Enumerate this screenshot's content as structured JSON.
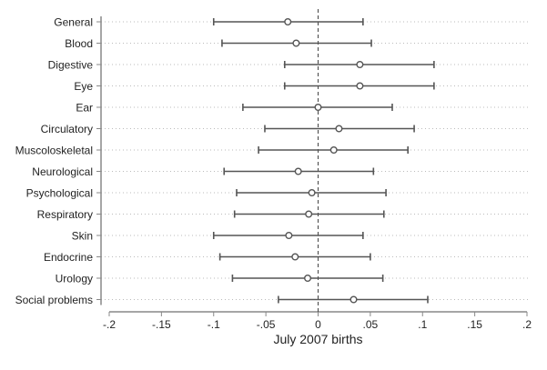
{
  "chart_data": {
    "type": "scatter",
    "subtype": "coefficient-plot-with-confidence-intervals",
    "xlabel": "July 2007 births",
    "ylabel": "",
    "title": "",
    "xlim": [
      -0.2,
      0.2
    ],
    "xticks": [
      {
        "value": -0.2,
        "label": "-.2"
      },
      {
        "value": -0.15,
        "label": "-.15"
      },
      {
        "value": -0.1,
        "label": "-.1"
      },
      {
        "value": -0.05,
        "label": "-.05"
      },
      {
        "value": 0,
        "label": "0"
      },
      {
        "value": 0.05,
        "label": ".05"
      },
      {
        "value": 0.1,
        "label": ".1"
      },
      {
        "value": 0.15,
        "label": ".15"
      },
      {
        "value": 0.2,
        "label": ".2"
      }
    ],
    "reference_line": {
      "x": 0,
      "style": "dashed"
    },
    "grid": "horizontal dotted",
    "categories": [
      "General",
      "Blood",
      "Digestive",
      "Eye",
      "Ear",
      "Circulatory",
      "Muscoloskeletal",
      "Neurological",
      "Psychological",
      "Respiratory",
      "Skin",
      "Endocrine",
      "Urology",
      "Social problems"
    ],
    "estimates": [
      {
        "label": "General",
        "point": -0.029,
        "lo": -0.1,
        "hi": 0.043
      },
      {
        "label": "Blood",
        "point": -0.021,
        "lo": -0.092,
        "hi": 0.051
      },
      {
        "label": "Digestive",
        "point": 0.04,
        "lo": -0.032,
        "hi": 0.111
      },
      {
        "label": "Eye",
        "point": 0.04,
        "lo": -0.032,
        "hi": 0.111
      },
      {
        "label": "Ear",
        "point": 0.0,
        "lo": -0.072,
        "hi": 0.071
      },
      {
        "label": "Circulatory",
        "point": 0.02,
        "lo": -0.051,
        "hi": 0.092
      },
      {
        "label": "Muscoloskeletal",
        "point": 0.015,
        "lo": -0.057,
        "hi": 0.086
      },
      {
        "label": "Neurological",
        "point": -0.019,
        "lo": -0.09,
        "hi": 0.053
      },
      {
        "label": "Psychological",
        "point": -0.006,
        "lo": -0.078,
        "hi": 0.065
      },
      {
        "label": "Respiratory",
        "point": -0.009,
        "lo": -0.08,
        "hi": 0.063
      },
      {
        "label": "Skin",
        "point": -0.028,
        "lo": -0.1,
        "hi": 0.043
      },
      {
        "label": "Endocrine",
        "point": -0.022,
        "lo": -0.094,
        "hi": 0.05
      },
      {
        "label": "Urology",
        "point": -0.01,
        "lo": -0.082,
        "hi": 0.062
      },
      {
        "label": "Social problems",
        "point": 0.034,
        "lo": -0.038,
        "hi": 0.105
      }
    ],
    "colors": {
      "marker": "#555555",
      "bar": "#555555",
      "grid": "#bbbbbb",
      "reference": "#444444",
      "axis": "#888888"
    }
  }
}
